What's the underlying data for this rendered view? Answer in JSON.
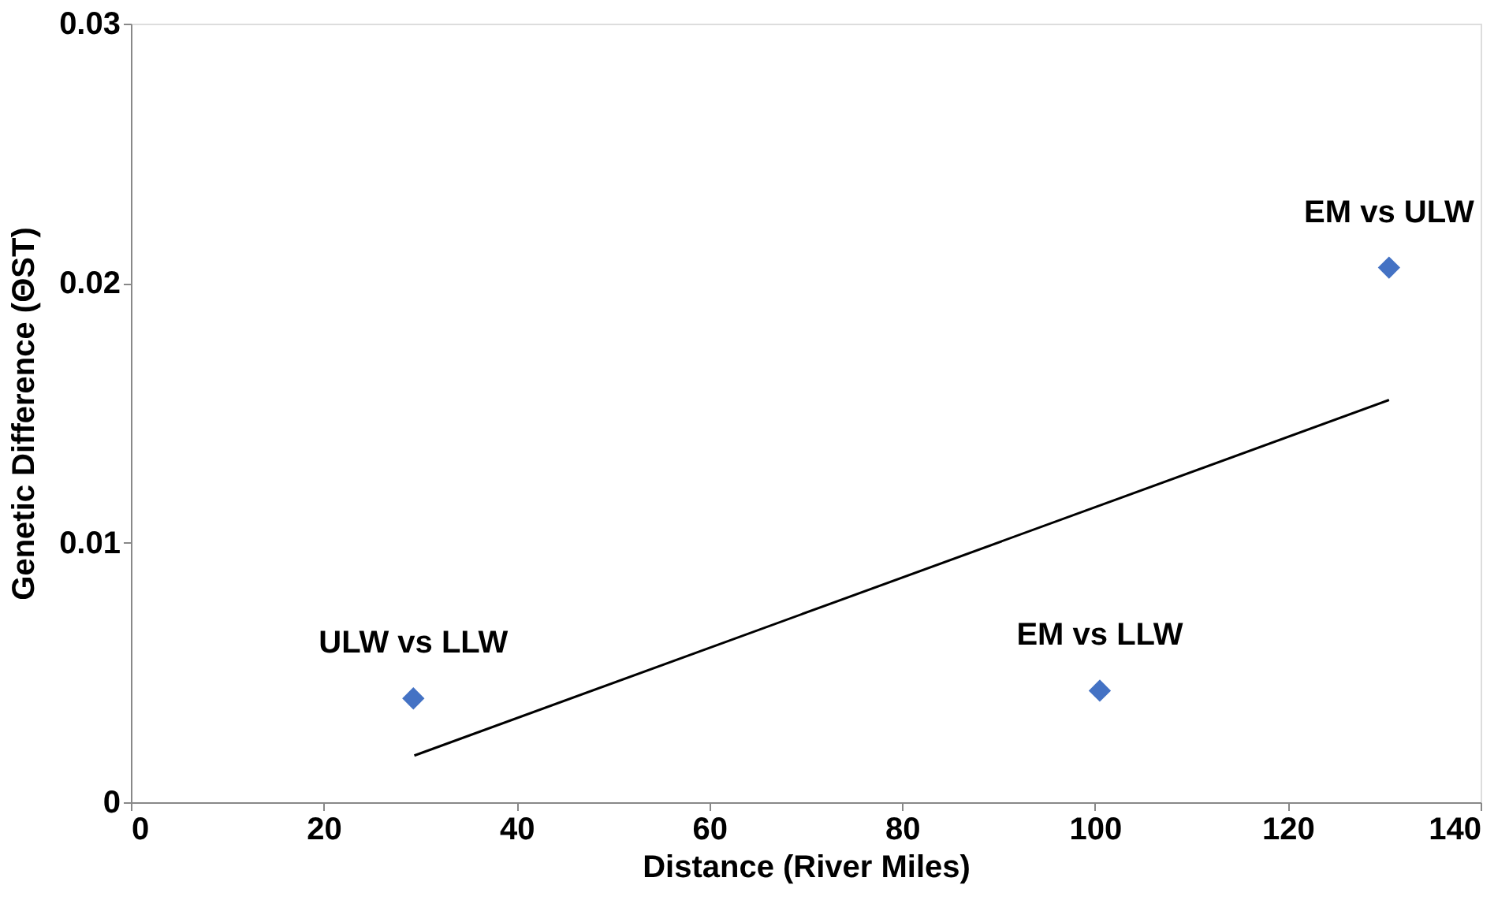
{
  "chart_data": {
    "type": "scatter",
    "xlabel": "Distance (River Miles)",
    "ylabel": "Genetic Difference (ΘST)",
    "xlim": [
      0,
      140
    ],
    "xticks": [
      0,
      20,
      40,
      60,
      80,
      100,
      120,
      140
    ],
    "ylim": [
      0,
      0.03
    ],
    "yticks": [
      0,
      0.01,
      0.02,
      0.03
    ],
    "grid": false,
    "legend": false,
    "series": [
      {
        "type": "scatter",
        "marker": "diamond",
        "color": "#4472c4",
        "x": [
          29.3,
          100.5,
          130.5
        ],
        "values": [
          0.004,
          0.0043,
          0.0206
        ]
      },
      {
        "type": "line",
        "marker": "none",
        "color": "#000000",
        "x": [
          29.4,
          130.5
        ],
        "values": [
          0.0018,
          0.0155
        ]
      }
    ],
    "annotations": [
      {
        "text": "ULW vs LLW",
        "x": 29.3,
        "y": 0.004
      },
      {
        "text": "EM vs LLW",
        "x": 100.5,
        "y": 0.0043
      },
      {
        "text": "EM vs ULW",
        "x": 130.5,
        "y": 0.0206
      }
    ]
  }
}
